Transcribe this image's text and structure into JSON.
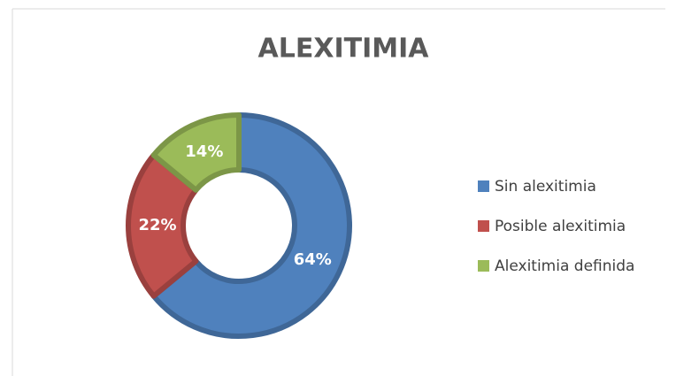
{
  "chart_data": {
    "type": "pie",
    "title": "ALEXITIMIA",
    "categories": [
      "Sin alexitimia",
      "Posible alexitimia",
      "Alexitimia definida"
    ],
    "values": [
      64,
      22,
      14
    ],
    "value_labels": [
      "64%",
      "22%",
      "14%"
    ],
    "colors": [
      "#4f81bd",
      "#c0504d",
      "#9bbb59"
    ],
    "legend": "right"
  }
}
